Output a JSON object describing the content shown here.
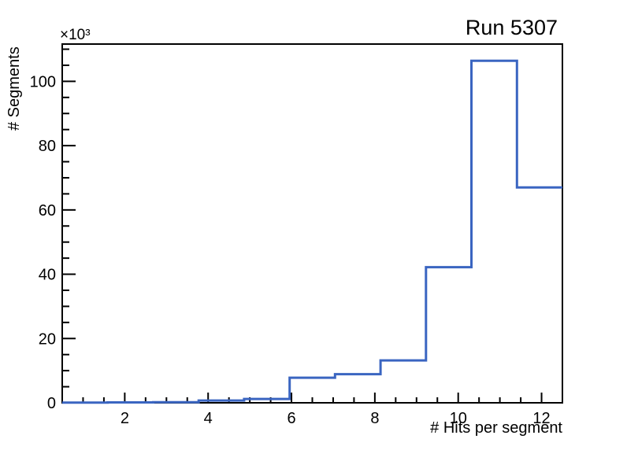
{
  "chart_data": {
    "type": "bar",
    "subtype": "step-histogram",
    "title": "Run 5307",
    "xlabel": "# Hits per segment",
    "ylabel": "# Segments",
    "y_scale_label": "×10³",
    "xlim": [
      0.5,
      12.5
    ],
    "ylim": [
      0,
      111.6
    ],
    "bin_edges": [
      0.5,
      1.591,
      2.682,
      3.773,
      4.864,
      5.955,
      7.045,
      8.136,
      9.227,
      10.318,
      11.409,
      12.5
    ],
    "values_thousands": [
      0.05,
      0.12,
      0.2,
      0.7,
      1.2,
      7.8,
      8.9,
      13.2,
      42.2,
      106.4,
      67.0
    ],
    "x_major_ticks": [
      2,
      4,
      6,
      8,
      10,
      12
    ],
    "x_minor_step": 0.5,
    "y_major_ticks": [
      0,
      20,
      40,
      60,
      80,
      100
    ],
    "y_minor_step": 5,
    "grid": "off",
    "legend": "none",
    "colors": {
      "line": "#3a65c1",
      "axis": "#000000",
      "text": "#000000",
      "background": "#ffffff"
    }
  }
}
